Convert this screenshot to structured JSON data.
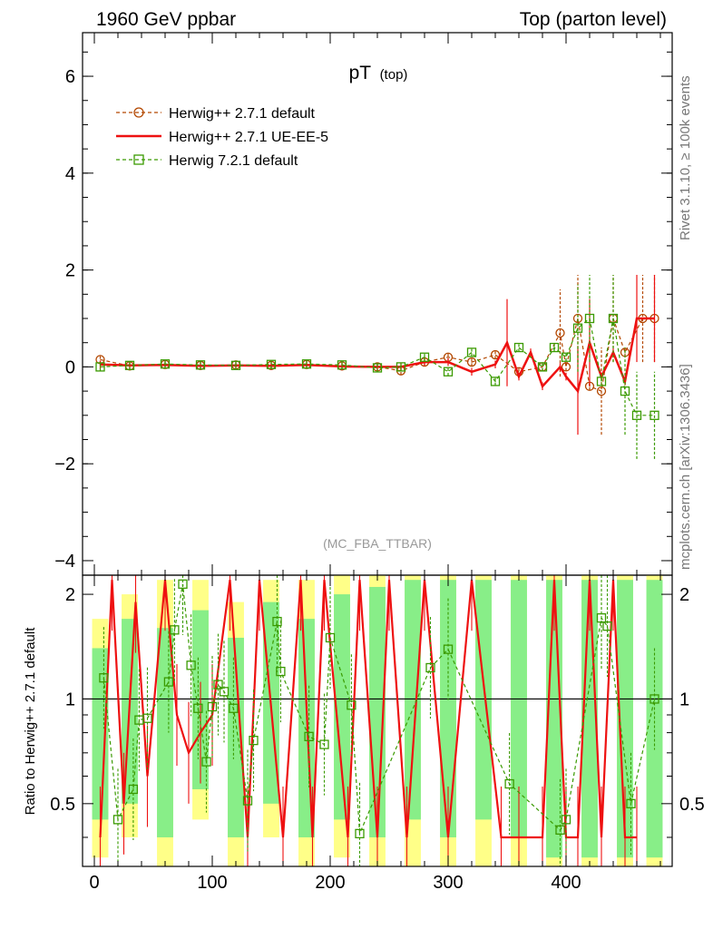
{
  "header": {
    "left_label": "1960 GeV ppbar",
    "right_label": "Top (parton level)"
  },
  "side_labels": {
    "rivet": "Rivet 3.1.10, ≥ 100k events",
    "source": "mcplots.cern.ch [arXiv:1306.3436]"
  },
  "watermark": "(MC_FBA_TTBAR)",
  "colors": {
    "herwig_pp_default": "#b34700",
    "herwig_pp_ueee5": "#ee1111",
    "herwig_7": "#3a9a00",
    "band_yellow": "#ffff88",
    "band_green": "#88ee88"
  },
  "chart_data": [
    {
      "type": "line",
      "title": "pT",
      "title_sub": "(top)",
      "xlabel": "",
      "ylabel": "",
      "xlim": [
        -10,
        490
      ],
      "ylim": [
        -4.3,
        6.9
      ],
      "yticks": [
        -4,
        -2,
        0,
        2,
        4,
        6
      ],
      "yticklabels": [
        "−4",
        "−2",
        "0",
        "2",
        "4",
        "6"
      ],
      "legend_position": "top-left",
      "series": [
        {
          "name": "Herwig++ 2.7.1 default",
          "style": "dashed-circle",
          "x": [
            5,
            30,
            60,
            90,
            120,
            150,
            180,
            210,
            240,
            260,
            280,
            300,
            320,
            340,
            360,
            380,
            395,
            400,
            410,
            420,
            430,
            440,
            450,
            465,
            475
          ],
          "y": [
            0.15,
            0.02,
            0.05,
            0.03,
            0.04,
            0.03,
            0.05,
            0.02,
            0.0,
            -0.08,
            0.1,
            0.2,
            0.1,
            0.25,
            -0.1,
            0.0,
            0.7,
            0.0,
            1.0,
            -0.4,
            -0.5,
            1.0,
            0.3,
            1.0,
            1.0
          ]
        },
        {
          "name": "Herwig++ 2.7.1 UE-EE-5",
          "style": "solid",
          "x": [
            5,
            30,
            60,
            90,
            120,
            150,
            180,
            210,
            240,
            260,
            280,
            300,
            320,
            340,
            350,
            360,
            370,
            380,
            395,
            400,
            410,
            420,
            430,
            440,
            450,
            460,
            475
          ],
          "y": [
            0.05,
            0.03,
            0.04,
            0.02,
            0.03,
            0.02,
            0.04,
            0.01,
            0.0,
            0.0,
            0.1,
            0.1,
            -0.1,
            0.05,
            0.5,
            -0.2,
            0.3,
            -0.4,
            0.0,
            -0.2,
            -0.5,
            0.5,
            -0.2,
            0.3,
            -0.3,
            1.0,
            1.0
          ]
        },
        {
          "name": "Herwig 7.2.1 default",
          "style": "dashed-square",
          "x": [
            5,
            30,
            60,
            90,
            120,
            150,
            180,
            210,
            240,
            260,
            280,
            300,
            320,
            340,
            360,
            380,
            390,
            400,
            410,
            420,
            430,
            440,
            450,
            460,
            475
          ],
          "y": [
            0.0,
            0.03,
            0.06,
            0.04,
            0.03,
            0.05,
            0.06,
            0.04,
            -0.02,
            0.0,
            0.2,
            -0.1,
            0.3,
            -0.3,
            0.4,
            0.0,
            0.4,
            0.2,
            0.8,
            1.0,
            -0.3,
            1.0,
            -0.5,
            -1.0,
            -1.0
          ]
        }
      ]
    },
    {
      "type": "line",
      "title": "",
      "xlabel": "",
      "ylabel": "Ratio to Herwig++ 2.7.1 default",
      "xlim": [
        -10,
        490
      ],
      "ylim": [
        0.33,
        2.27
      ],
      "xticks": [
        0,
        100,
        200,
        300,
        400
      ],
      "yticks": [
        0.5,
        1,
        2
      ],
      "ytick_positions": [
        0.5,
        1.0,
        2.0
      ],
      "reference_line": 1.0,
      "bands": {
        "x": [
          5,
          30,
          60,
          90,
          120,
          150,
          180,
          210,
          240,
          270,
          300,
          330,
          360,
          390,
          420,
          450,
          475
        ],
        "green_low": [
          0.45,
          0.5,
          0.4,
          0.55,
          0.4,
          0.5,
          0.4,
          0.45,
          0.4,
          0.45,
          0.4,
          0.45,
          0.4,
          0.35,
          0.35,
          0.35,
          0.35
        ],
        "green_high": [
          1.4,
          1.7,
          1.6,
          1.8,
          1.5,
          1.9,
          1.7,
          2.0,
          2.1,
          2.2,
          2.2,
          2.2,
          2.2,
          2.2,
          2.2,
          2.2,
          2.2
        ],
        "yellow_low": [
          0.35,
          0.4,
          0.33,
          0.45,
          0.33,
          0.4,
          0.33,
          0.35,
          0.33,
          0.33,
          0.33,
          0.33,
          0.33,
          0.33,
          0.33,
          0.33,
          0.33
        ],
        "yellow_high": [
          1.7,
          2.0,
          2.2,
          2.2,
          1.9,
          2.2,
          2.2,
          2.27,
          2.27,
          2.27,
          2.27,
          2.27,
          2.27,
          2.27,
          2.27,
          2.27,
          2.27
        ]
      },
      "series": [
        {
          "name": "Herwig++ 2.7.1 UE-EE-5",
          "x": [
            5,
            15,
            25,
            35,
            45,
            60,
            70,
            80,
            90,
            100,
            115,
            130,
            140,
            160,
            175,
            185,
            195,
            215,
            225,
            240,
            250,
            265,
            280,
            300,
            320,
            345,
            360,
            380,
            390,
            400,
            410,
            420,
            430,
            440,
            450,
            460
          ],
          "y": [
            0.4,
            2.2,
            0.5,
            1.9,
            0.6,
            2.2,
            0.9,
            0.7,
            0.8,
            0.9,
            2.2,
            0.4,
            2.2,
            0.4,
            2.2,
            0.4,
            2.2,
            0.4,
            2.2,
            0.4,
            2.2,
            0.4,
            2.2,
            0.4,
            2.2,
            0.4,
            0.4,
            0.4,
            2.2,
            0.4,
            0.4,
            2.2,
            0.4,
            2.2,
            0.4,
            0.4
          ]
        },
        {
          "name": "Herwig 7.2.1 default",
          "x": [
            8,
            20,
            33,
            38,
            45,
            63,
            68,
            75,
            82,
            88,
            95,
            100,
            105,
            110,
            118,
            130,
            135,
            155,
            158,
            182,
            195,
            200,
            218,
            225,
            285,
            300,
            352,
            395,
            400,
            430,
            435,
            455,
            475
          ],
          "y": [
            1.15,
            0.45,
            0.55,
            0.87,
            0.88,
            1.12,
            1.58,
            2.14,
            1.25,
            0.94,
            0.66,
            0.95,
            1.1,
            1.05,
            0.94,
            0.51,
            0.76,
            1.67,
            1.2,
            0.78,
            0.74,
            1.5,
            0.96,
            0.41,
            1.23,
            1.39,
            0.57,
            0.42,
            0.45,
            1.71,
            1.62,
            0.5,
            1.0
          ]
        }
      ]
    }
  ]
}
